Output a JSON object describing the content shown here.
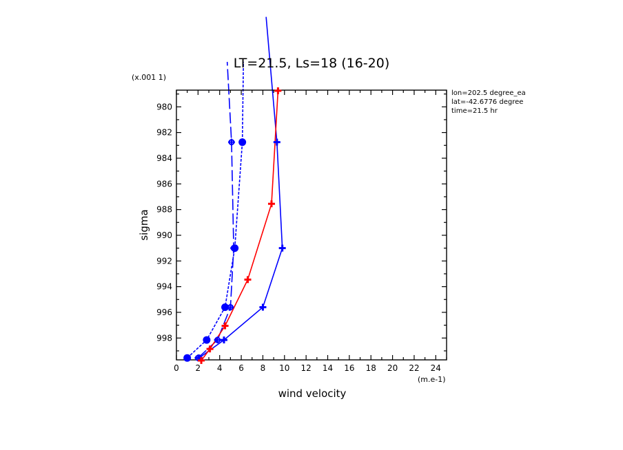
{
  "chart_data": {
    "type": "line",
    "title": "LT=21.5, Ls=18 (16-20)",
    "xlabel": "wind velocity",
    "ylabel": "sigma",
    "x_unit": "(m.e-1)",
    "y_unit": "(x.001 1)",
    "xlim": [
      0,
      25
    ],
    "ylim": [
      999.7,
      978.7
    ],
    "y_inverted": true,
    "grid": false,
    "xticks": [
      "0",
      "2",
      "4",
      "6",
      "8",
      "10",
      "12",
      "14",
      "16",
      "18",
      "20",
      "22",
      "24"
    ],
    "yticks": [
      "980",
      "982",
      "984",
      "986",
      "988",
      "990",
      "992",
      "994",
      "996",
      "998"
    ],
    "annotations": [
      "lon=202.5 degree_ea",
      "lat=-42.6776 degree",
      "time=21.5 hr"
    ],
    "series": [
      {
        "style": "dashed",
        "color": "#0000ff",
        "marker": "circle",
        "points": [
          [
            1.0,
            999.55
          ],
          [
            2.8,
            998.15
          ],
          [
            4.5,
            995.6
          ],
          [
            5.4,
            991.0
          ],
          [
            6.1,
            982.75
          ],
          [
            6.2,
            976.5
          ]
        ]
      },
      {
        "style": "long-dashed",
        "color": "#0000ff",
        "marker": "circle-cross",
        "points": [
          [
            2.0,
            999.55
          ],
          [
            3.8,
            998.15
          ],
          [
            5.0,
            995.6
          ],
          [
            5.3,
            991.0
          ],
          [
            5.1,
            982.75
          ],
          [
            4.7,
            976.5
          ]
        ]
      },
      {
        "style": "solid",
        "color": "#0000ff",
        "marker": "cross",
        "points": [
          [
            2.1,
            999.55
          ],
          [
            4.4,
            998.15
          ],
          [
            8.0,
            995.6
          ],
          [
            9.8,
            991.0
          ],
          [
            9.3,
            982.75
          ],
          [
            8.3,
            973.0
          ]
        ]
      },
      {
        "style": "solid",
        "color": "#ff0000",
        "marker": "cross",
        "points": [
          [
            2.3,
            999.75
          ],
          [
            3.1,
            998.85
          ],
          [
            4.5,
            997.05
          ],
          [
            6.6,
            993.45
          ],
          [
            8.8,
            987.55
          ],
          [
            9.4,
            978.75
          ]
        ]
      }
    ]
  }
}
